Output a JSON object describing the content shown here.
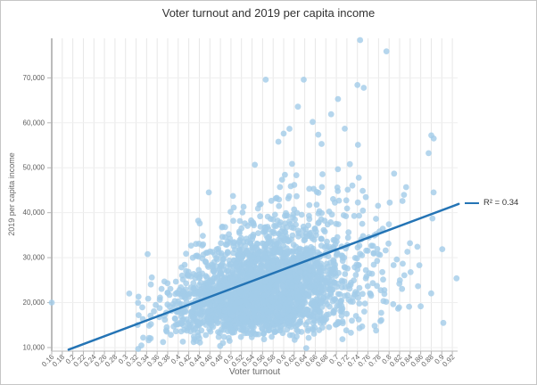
{
  "chart_data": {
    "type": "scatter",
    "title": "Voter turnout and 2019 per capita income",
    "xlabel": "Voter turnout",
    "ylabel": "2019 per capita income",
    "xlim": [
      0.16,
      0.93
    ],
    "ylim": [
      9200,
      78800
    ],
    "grid": true,
    "legend_position": "right-middle",
    "legend": {
      "label": "R² = 0.34",
      "r_squared": 0.34
    },
    "x_ticks": [
      0.16,
      0.18,
      0.2,
      0.22,
      0.24,
      0.26,
      0.28,
      0.3,
      0.32,
      0.34,
      0.36,
      0.38,
      0.4,
      0.42,
      0.44,
      0.46,
      0.48,
      0.5,
      0.52,
      0.54,
      0.56,
      0.58,
      0.6,
      0.62,
      0.64,
      0.66,
      0.68,
      0.7,
      0.72,
      0.74,
      0.76,
      0.78,
      0.8,
      0.82,
      0.84,
      0.86,
      0.88,
      0.9,
      0.92
    ],
    "x_tick_labels": [
      "0.16",
      "0.18",
      "0.2",
      "0.22",
      "0.24",
      "0.26",
      "0.28",
      "0.3",
      "0.32",
      "0.34",
      "0.36",
      "0.38",
      "0.4",
      "0.42",
      "0.44",
      "0.46",
      "0.48",
      "0.5",
      "0.52",
      "0.54",
      "0.56",
      "0.58",
      "0.6",
      "0.62",
      "0.64",
      "0.66",
      "0.68",
      "0.7",
      "0.72",
      "0.74",
      "0.76",
      "0.78",
      "0.8",
      "0.82",
      "0.84",
      "0.86",
      "0.88",
      "0.9",
      "0.92"
    ],
    "y_ticks": [
      10000,
      20000,
      30000,
      40000,
      50000,
      60000,
      70000
    ],
    "y_tick_labels": [
      "10,000",
      "20,000",
      "30,000",
      "40,000",
      "50,000",
      "60,000",
      "70,000"
    ],
    "colors": {
      "point_fill": "#a3cce9",
      "point_opacity": 0.8,
      "trend_line": "#2474b5",
      "grid_vertical": "#e7e7e7",
      "grid_horizontal": "#efefef",
      "y_axis_line": "#8f8f8f",
      "x_axis_line": "#c8c8c8",
      "tick_mark": "#b5b5b5",
      "tick_text": "#606060",
      "title_text": "#333333",
      "axis_title_text": "#666666"
    },
    "series": [
      {
        "name": "county-point-cloud",
        "kind": "scatter-cloud",
        "count": 2600,
        "seed": 1337,
        "marker_radius": 3.4,
        "x_dist": {
          "mix": [
            {
              "w": 0.85,
              "mean": 0.553,
              "sd": 0.078
            },
            {
              "w": 0.15,
              "mean": 0.67,
              "sd": 0.11
            }
          ],
          "clip": [
            0.305,
            0.925
          ]
        },
        "y_model": {
          "median_intercept": 11500,
          "median_slope": 20000,
          "log_sd_intercept": 0.16,
          "log_sd_slope": 0.18,
          "clip": [
            9600,
            78500
          ]
        }
      },
      {
        "name": "notable-points",
        "kind": "scatter",
        "marker_radius": 3.4,
        "points": [
          [
            0.745,
            78400
          ],
          [
            0.795,
            75900
          ],
          [
            0.566,
            69600
          ],
          [
            0.638,
            69600
          ],
          [
            0.74,
            68400
          ],
          [
            0.752,
            67800
          ],
          [
            0.703,
            65300
          ],
          [
            0.627,
            63600
          ],
          [
            0.69,
            61900
          ],
          [
            0.655,
            60200
          ],
          [
            0.716,
            58700
          ],
          [
            0.6,
            57600
          ],
          [
            0.88,
            57200
          ],
          [
            0.59,
            55800
          ],
          [
            0.672,
            55300
          ],
          [
            0.741,
            55100
          ],
          [
            0.16,
            20000
          ],
          [
            0.928,
            25400
          ],
          [
            0.324,
            9700
          ],
          [
            0.344,
            11600
          ],
          [
            0.342,
            30800
          ],
          [
            0.307,
            22000
          ]
        ]
      },
      {
        "name": "trendline",
        "kind": "line",
        "x": [
          0.192,
          0.932
        ],
        "y": [
          9540,
          41950
        ],
        "width": 2.5,
        "label": "R² = 0.34"
      }
    ]
  }
}
